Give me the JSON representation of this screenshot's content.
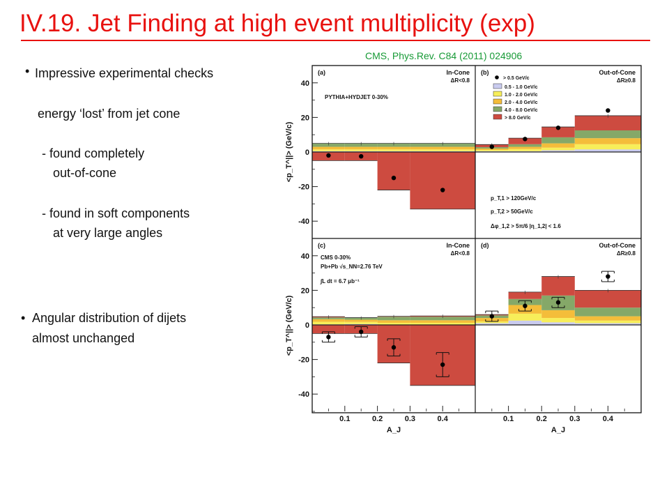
{
  "slide": {
    "title": "IV.19. Jet Finding at high event multiplicity (exp)",
    "citation": "CMS,  Phys.Rev. C84 (2011) 024906",
    "bullet_char": "•",
    "text_lines": [
      "Impressive experimental checks",
      "energy ‘lost’ from jet cone",
      "- found completely",
      "out-of-cone",
      "- found in soft components",
      "at very large angles",
      "Angular distribution of dijets",
      "almost unchanged"
    ]
  },
  "chart_data": {
    "type": "bar",
    "subtype": "stacked-step-histogram-with-points",
    "x_bins": [
      0.0,
      0.1,
      0.2,
      0.3,
      0.5
    ],
    "x_ticks": [
      "0.1",
      "0.2",
      "0.3",
      "0.4"
    ],
    "xlim": [
      0.0,
      0.5
    ],
    "xlabel": "A_J",
    "ylabel": "<p_T^||> (GeV/c)",
    "ylim": [
      -50,
      50
    ],
    "y_ticks": [
      "40",
      "20",
      "0",
      "-20",
      "-40"
    ],
    "legend": {
      "placement": "top-right of panel (b)",
      "points_label": "> 0.5 GeV/c",
      "entries": [
        {
          "label": "0.5 - 1.0 GeV/c",
          "color": "#c9cbef"
        },
        {
          "label": "1.0 - 2.0 GeV/c",
          "color": "#f7ee5a"
        },
        {
          "label": "2.0 - 4.0 GeV/c",
          "color": "#f4bd3a"
        },
        {
          "label": "4.0 - 8.0 GeV/c",
          "color": "#85a868"
        },
        {
          "label": "> 8.0 GeV/c",
          "color": "#cd4b40"
        }
      ]
    },
    "panels": [
      {
        "id": "a",
        "label": "(a)",
        "region": "In-Cone",
        "cut": "ΔR<0.8",
        "texts": [
          "PYTHIA+HYDJET 0-30%"
        ],
        "stack_pos": [
          [
            0.5,
            1.0,
            1.5,
            2.0,
            0.0
          ],
          [
            0.5,
            1.0,
            1.5,
            2.0,
            0.0
          ],
          [
            0.5,
            1.0,
            1.5,
            2.0,
            0.0
          ],
          [
            0.5,
            1.0,
            1.5,
            2.0,
            0.0
          ]
        ],
        "neg": [
          -5,
          -5,
          -22,
          -33
        ],
        "points": [
          -2,
          -2.5,
          -15,
          -22
        ],
        "errors": null
      },
      {
        "id": "b",
        "label": "(b)",
        "region": "Out-of-Cone",
        "cut": "ΔR≥0.8",
        "texts": [
          "p_T,1 > 120GeV/c",
          "p_T,2 > 50GeV/c",
          "Δφ_1,2 > 5π/6   |η_1,2| < 1.6"
        ],
        "stack_pos": [
          [
            0.5,
            0.7,
            0.8,
            0.8,
            1.5
          ],
          [
            0.5,
            1.2,
            1.3,
            1.5,
            3.5
          ],
          [
            1.0,
            1.5,
            2.5,
            3.5,
            6.0
          ],
          [
            1.5,
            3.0,
            3.5,
            4.5,
            8.5
          ]
        ],
        "neg": [
          0,
          0,
          0,
          0
        ],
        "points": [
          3,
          7.5,
          14,
          24
        ],
        "errors": null
      },
      {
        "id": "c",
        "label": "(c)",
        "region": "In-Cone",
        "cut": "ΔR<0.8",
        "texts": [
          "CMS 0-30%",
          "Pb+Pb √s_NN=2.76 TeV",
          "∫L dt = 6.7 μb⁻¹"
        ],
        "stack_pos": [
          [
            0.3,
            1.5,
            1.5,
            1.0,
            0.5
          ],
          [
            0.5,
            1.2,
            1.3,
            1.2,
            0.0
          ],
          [
            0.2,
            1.0,
            1.5,
            2.0,
            0.3
          ],
          [
            0.2,
            1.0,
            1.5,
            2.0,
            0.5
          ]
        ],
        "neg": [
          -5,
          -5,
          -22,
          -35
        ],
        "points": [
          -7,
          -4,
          -13,
          -23
        ],
        "errors": [
          3,
          3,
          5,
          7
        ]
      },
      {
        "id": "d",
        "label": "(d)",
        "region": "Out-of-Cone",
        "cut": "ΔR≥0.8",
        "texts": [],
        "stack_pos": [
          [
            1.0,
            1.0,
            2.0,
            1.5,
            0.5
          ],
          [
            2.5,
            4.0,
            5.0,
            3.5,
            4.0
          ],
          [
            1.5,
            2.5,
            4.5,
            8.5,
            11.0
          ],
          [
            1.0,
            1.5,
            2.5,
            5.0,
            10.0
          ]
        ],
        "neg": [
          0,
          0,
          0,
          0
        ],
        "points": [
          5,
          11,
          13,
          28
        ],
        "errors": [
          3,
          3,
          3,
          3
        ]
      }
    ]
  }
}
